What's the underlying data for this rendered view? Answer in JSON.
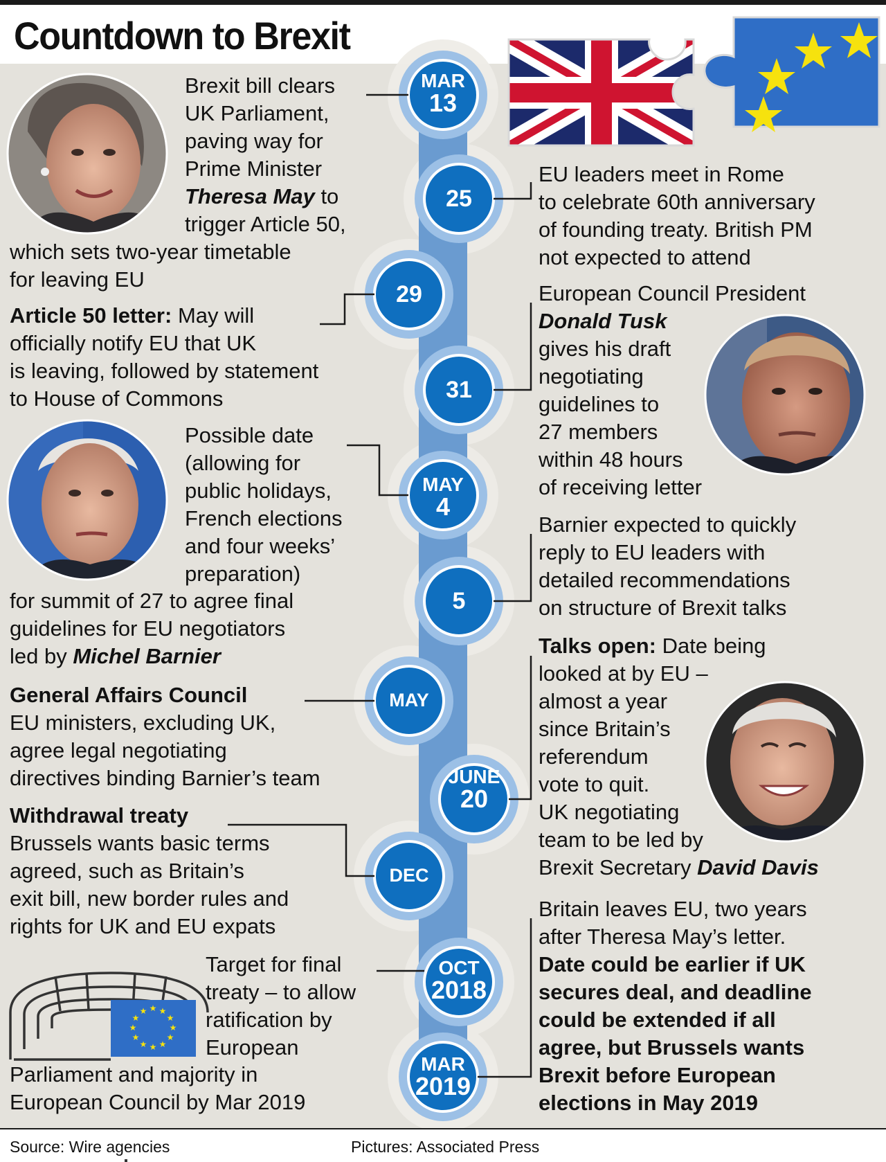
{
  "title": "Countdown to Brexit",
  "footer": {
    "source": "Source: Wire agencies",
    "pictures": "Pictures: Associated Press"
  },
  "colors": {
    "background_panel": "#e4e2dc",
    "timeline_band": "#6a9bd0",
    "date_circle": "#0f6fbf",
    "eu_blue": "#2f6ec6",
    "eu_star": "#f6e20e",
    "union_red": "#cf1430",
    "union_navy": "#1c2a6b"
  },
  "dates": {
    "mar13": {
      "month": "MAR",
      "day": "13"
    },
    "d25": {
      "day": "25"
    },
    "d29": {
      "day": "29"
    },
    "d31": {
      "day": "31"
    },
    "may4": {
      "month": "MAY",
      "day": "4"
    },
    "d5": {
      "day": "5"
    },
    "may": {
      "month": "MAY"
    },
    "june20": {
      "month": "JUNE",
      "day": "20"
    },
    "dec": {
      "month": "DEC"
    },
    "oct2018": {
      "month": "OCT",
      "day": "2018"
    },
    "mar2019": {
      "month": "MAR",
      "day": "2019"
    }
  },
  "events": {
    "mar13": {
      "l1": "Brexit bill clears",
      "l2": "UK Parliament,",
      "l3": "paving way for",
      "l4": "Prime Minister",
      "name": "Theresa May",
      "l5_rest": " to",
      "l6": "trigger Article 50,",
      "l7": "which sets two-year timetable",
      "l8": "for leaving EU"
    },
    "d25": {
      "l1": "EU leaders meet in Rome",
      "l2": "to celebrate 60th anniversary",
      "l3": "of founding treaty. British PM",
      "l4": "not expected to attend"
    },
    "d29": {
      "heading": "Article 50 letter:",
      "l1_rest": " May will",
      "l2": "officially notify EU that UK",
      "l3": "is leaving, followed by statement",
      "l4": "to House of Commons"
    },
    "d31": {
      "l1": "European Council President",
      "name": "Donald Tusk",
      "l3": "gives his draft",
      "l4": "negotiating",
      "l5": "guidelines to",
      "l6": "27 members",
      "l7": "within 48 hours",
      "l8": "of receiving letter"
    },
    "may4": {
      "l1": "Possible date",
      "l2": "(allowing for",
      "l3": "public holidays,",
      "l4": "French elections",
      "l5": "and four weeks’",
      "l6": "preparation)",
      "l7": "for summit of 27 to agree final",
      "l8": "guidelines for EU negotiators",
      "l9_pre": "led by ",
      "name": "Michel Barnier"
    },
    "d5": {
      "l1": "Barnier expected to quickly",
      "l2": "reply to EU leaders with",
      "l3": "detailed recommendations",
      "l4": "on structure of Brexit talks"
    },
    "may": {
      "heading": "General Affairs Council",
      "l2": "EU ministers, excluding UK,",
      "l3": "agree legal negotiating",
      "l4": "directives binding Barnier’s team"
    },
    "june20": {
      "heading": "Talks open:",
      "l1_rest": " Date being",
      "l2": "looked at by EU –",
      "l3": "almost a year",
      "l4": "since Britain’s",
      "l5": "referendum",
      "l6": "vote to quit.",
      "l7": "UK negotiating",
      "l8": "team to be led by",
      "l9_pre": "Brexit Secretary ",
      "name": "David Davis"
    },
    "dec": {
      "heading": "Withdrawal treaty",
      "l2": "Brussels wants basic terms",
      "l3": "agreed, such as Britain’s",
      "l4": "exit bill, new border rules and",
      "l5": "rights for UK and EU expats"
    },
    "oct2018": {
      "l1": "Target for final",
      "l2": "treaty – to allow",
      "l3": "ratification by",
      "l4": "European",
      "l5": "Parliament and majority in",
      "l6": "European Council by Mar 2019"
    },
    "mar2019": {
      "l1": "Britain leaves EU, two years",
      "l2": "after Theresa May’s letter.",
      "b1": "Date could be earlier if UK",
      "b2": "secures deal, and deadline",
      "b3": "could be extended if all",
      "b4": "agree, but Brussels wants",
      "b5": "Brexit before European",
      "b6": "elections in May 2019"
    }
  }
}
